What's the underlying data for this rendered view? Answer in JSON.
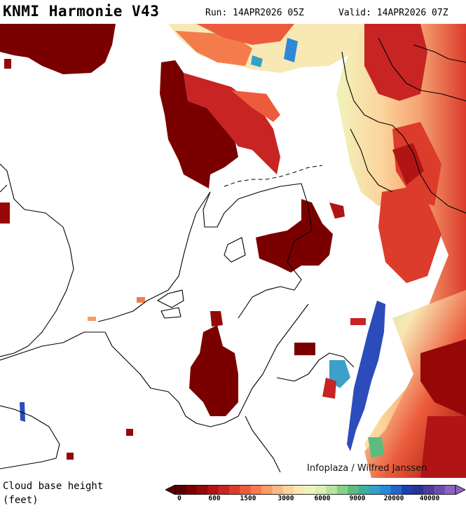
{
  "header": {
    "title": "KNMI Harmonie V43",
    "run": "Run: 14APR2026 05Z",
    "valid": "Valid: 14APR2026 07Z"
  },
  "map": {
    "credit": "Infoplaza / Wilfred Janssen"
  },
  "legend": {
    "label_line1": "Cloud base height",
    "label_line2": "(feet)",
    "ticks": [
      "0",
      "600",
      "1500",
      "3000",
      "6000",
      "9000",
      "20000",
      "40000"
    ],
    "colors": [
      "#5a0000",
      "#7a0000",
      "#960808",
      "#b01414",
      "#c82424",
      "#dc3c2c",
      "#ec5c3c",
      "#f47c4c",
      "#f89c64",
      "#fcb884",
      "#fcd49c",
      "#f8e8b4",
      "#f0f4bc",
      "#dcf0b0",
      "#b8e4a0",
      "#88d088",
      "#5cbc80",
      "#3cb0a0",
      "#34a0c8",
      "#2c88d8",
      "#2464c8",
      "#1c40b0",
      "#283494",
      "#4c3c9c",
      "#6c4cb0",
      "#8c64c0"
    ],
    "scale": {
      "cloud_base_min_ft": 0,
      "cloud_base_max_ft": 40000
    }
  }
}
